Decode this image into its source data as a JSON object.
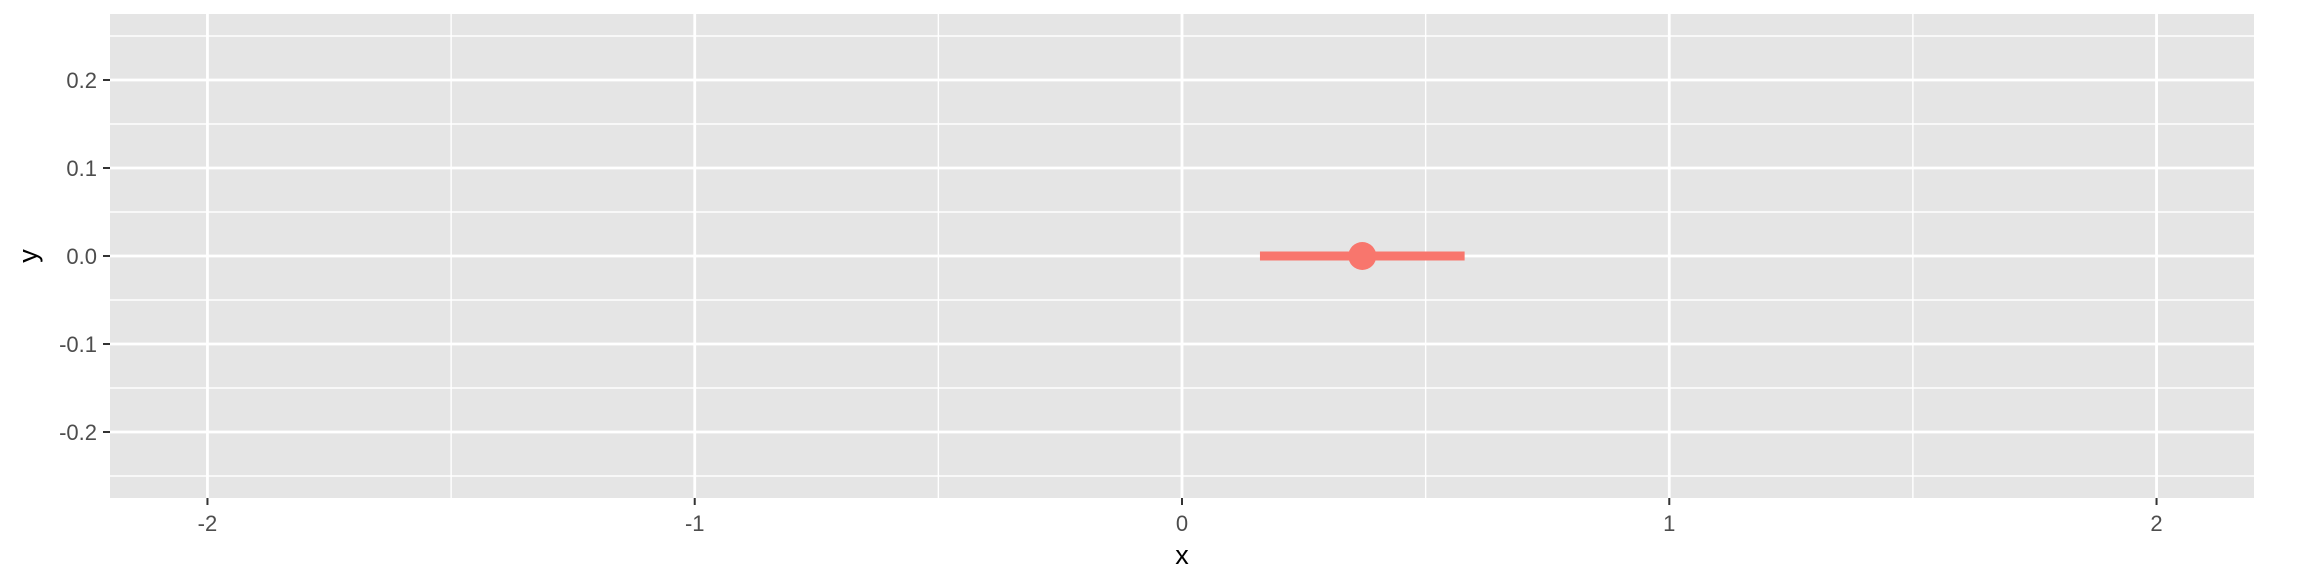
{
  "chart_data": {
    "type": "pointrange",
    "title": "",
    "xlabel": "x",
    "ylabel": "y",
    "xlim": [
      -2.2,
      2.2
    ],
    "ylim": [
      -0.275,
      0.275
    ],
    "x_ticks": [
      -2,
      -1,
      0,
      1,
      2
    ],
    "x_tick_labels": [
      "-2",
      "-1",
      "0",
      "1",
      "2"
    ],
    "y_ticks": [
      -0.2,
      -0.1,
      0.0,
      0.1,
      0.2
    ],
    "y_tick_labels": [
      "-0.2",
      "-0.1",
      "0.0",
      "0.1",
      "0.2"
    ],
    "grid": true,
    "legend": "none",
    "background_color": "#e5e5e5",
    "grid_color": "#ffffff",
    "series": [
      {
        "color": "#f8766d",
        "points": [
          {
            "x": 0.37,
            "xmin": 0.16,
            "xmax": 0.58,
            "y": 0.0
          }
        ]
      }
    ]
  }
}
